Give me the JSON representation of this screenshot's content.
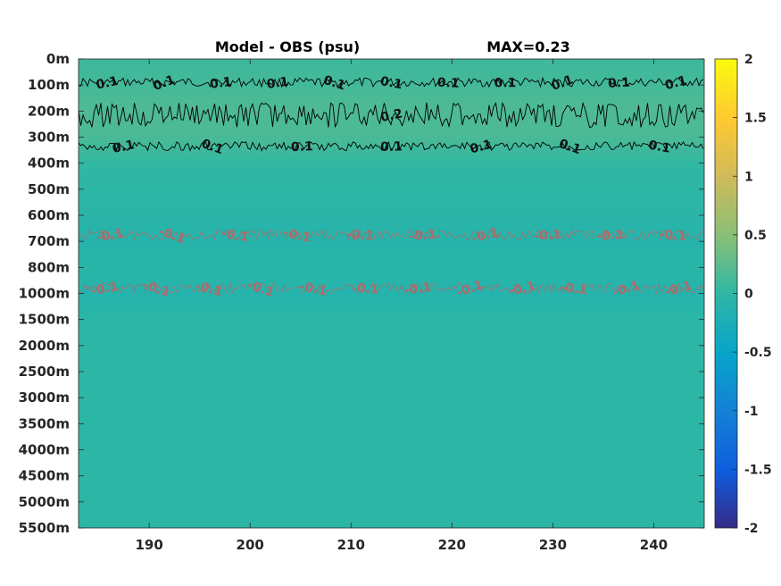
{
  "chart_data": {
    "type": "heatmap",
    "title": "Model - OBS (psu)",
    "max_label": "MAX=0.23",
    "xlim": [
      183,
      245
    ],
    "x_ticks": [
      190,
      200,
      210,
      220,
      230,
      240
    ],
    "x_tick_labels": [
      "190",
      "200",
      "210",
      "220",
      "230",
      "240"
    ],
    "y_tick_labels": [
      "0m",
      "100m",
      "200m",
      "300m",
      "400m",
      "500m",
      "600m",
      "700m",
      "800m",
      "1000m",
      "1500m",
      "2000m",
      "2500m",
      "3000m",
      "3500m",
      "4000m",
      "4500m",
      "5000m",
      "5500m"
    ],
    "colorbar": {
      "colormap": "parula",
      "clim": [
        -2,
        2
      ],
      "ticks": [
        2,
        1.5,
        1,
        0.5,
        0,
        -0.5,
        -1,
        -1.5,
        -2
      ],
      "tick_labels": [
        "2",
        "1.5",
        "1",
        "0.5",
        "0",
        "-0.5",
        "-1",
        "-1.5",
        "-2"
      ]
    },
    "depth_profile": {
      "depth_index": [
        0,
        1,
        2,
        3,
        4,
        5,
        6,
        7,
        8,
        9,
        10,
        11,
        12,
        13,
        14,
        15,
        16,
        17,
        18
      ],
      "values": [
        0.08,
        0.12,
        0.18,
        0.15,
        0.02,
        -0.02,
        -0.05,
        -0.1,
        -0.06,
        -0.12,
        -0.04,
        -0.03,
        -0.03,
        -0.03,
        -0.03,
        -0.03,
        -0.03,
        -0.03,
        -0.03
      ]
    },
    "contours": [
      {
        "level": 0.1,
        "depth_index": 0.9,
        "color": "black",
        "labels": [
          "0.1",
          "0.1",
          "0.1",
          "0.1",
          "0.1",
          "0.1",
          "0.1",
          "0.1",
          "0.1",
          "0.1",
          "0.1"
        ]
      },
      {
        "level": 0.1,
        "depth_index": 3.35,
        "color": "black",
        "labels": [
          "0.1",
          "0.1",
          "0.1",
          "0.1",
          "0.1",
          "0.1",
          "0.1"
        ]
      },
      {
        "level": 0.2,
        "depth_index": 2.15,
        "color": "black",
        "labels": [
          "0.2"
        ]
      },
      {
        "level": -0.1,
        "depth_index": 6.75,
        "color": "red",
        "labels": [
          "-0.1",
          "-0.1",
          "-0.1",
          "-0.1",
          "-0.1",
          "-0.1",
          "-0.1",
          "-0.1",
          "-0.1",
          "-0.1"
        ]
      },
      {
        "level": -0.1,
        "depth_index": 8.8,
        "color": "red",
        "labels": [
          "-0.1",
          "-0.1",
          "-0.1",
          "-0.1",
          "-0.1",
          "-0.1",
          "-0.1",
          "-0.1",
          "-0.1",
          "-0.1",
          "-0.1",
          "-0.1"
        ]
      }
    ]
  }
}
